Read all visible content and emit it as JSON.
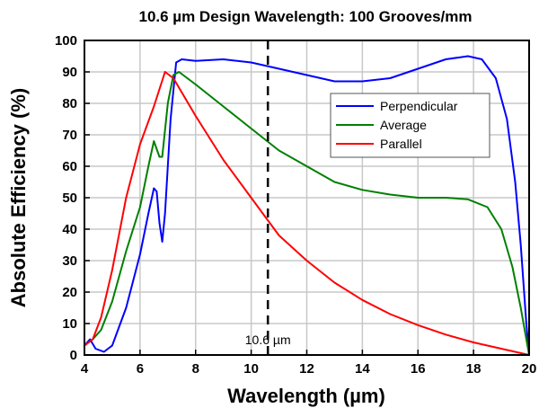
{
  "chart_data": {
    "type": "line",
    "title": "10.6 µm Design Wavelength: 100 Grooves/mm",
    "xlabel": "Wavelength (µm)",
    "ylabel": "Absolute Efficiency (%)",
    "xlim": [
      4,
      20
    ],
    "ylim": [
      0,
      100
    ],
    "xticks": [
      4,
      6,
      8,
      10,
      12,
      14,
      16,
      18,
      20
    ],
    "yticks": [
      0,
      10,
      20,
      30,
      40,
      50,
      60,
      70,
      80,
      90,
      100
    ],
    "grid": true,
    "legend_position": "upper-right",
    "annotation": {
      "label": "10.6 µm",
      "x": 10.6,
      "style": "dashed vertical line"
    },
    "series": [
      {
        "name": "Perpendicular",
        "color": "#0000ff",
        "points": [
          [
            4,
            3
          ],
          [
            4.2,
            5
          ],
          [
            4.4,
            2
          ],
          [
            4.7,
            1
          ],
          [
            5,
            3
          ],
          [
            5.5,
            15
          ],
          [
            6,
            32
          ],
          [
            6.3,
            45
          ],
          [
            6.5,
            53
          ],
          [
            6.6,
            52
          ],
          [
            6.7,
            42
          ],
          [
            6.8,
            36
          ],
          [
            6.9,
            45
          ],
          [
            7.1,
            75
          ],
          [
            7.3,
            93
          ],
          [
            7.5,
            94
          ],
          [
            8,
            93.5
          ],
          [
            9,
            94
          ],
          [
            10,
            93
          ],
          [
            11,
            91
          ],
          [
            12,
            89
          ],
          [
            13,
            87
          ],
          [
            14,
            87
          ],
          [
            15,
            88
          ],
          [
            16,
            91
          ],
          [
            17,
            94
          ],
          [
            17.8,
            95
          ],
          [
            18.3,
            94
          ],
          [
            18.8,
            88
          ],
          [
            19.2,
            75
          ],
          [
            19.5,
            55
          ],
          [
            19.7,
            35
          ],
          [
            19.9,
            10
          ],
          [
            20,
            0
          ]
        ]
      },
      {
        "name": "Average",
        "color": "#008000",
        "points": [
          [
            4,
            3
          ],
          [
            4.3,
            5
          ],
          [
            4.6,
            8
          ],
          [
            5,
            17
          ],
          [
            5.5,
            33
          ],
          [
            6,
            47
          ],
          [
            6.3,
            60
          ],
          [
            6.5,
            68
          ],
          [
            6.7,
            63
          ],
          [
            6.8,
            63
          ],
          [
            7,
            80
          ],
          [
            7.2,
            89
          ],
          [
            7.4,
            90
          ],
          [
            8,
            86
          ],
          [
            9,
            79
          ],
          [
            10,
            72
          ],
          [
            11,
            65
          ],
          [
            12,
            60
          ],
          [
            13,
            55
          ],
          [
            14,
            52.5
          ],
          [
            15,
            51
          ],
          [
            16,
            50
          ],
          [
            17,
            50
          ],
          [
            17.8,
            49.5
          ],
          [
            18.5,
            47
          ],
          [
            19,
            40
          ],
          [
            19.4,
            28
          ],
          [
            19.7,
            15
          ],
          [
            20,
            0
          ]
        ]
      },
      {
        "name": "Parallel",
        "color": "#ff0000",
        "points": [
          [
            4,
            3
          ],
          [
            4.3,
            5
          ],
          [
            4.6,
            12
          ],
          [
            5,
            27
          ],
          [
            5.5,
            50
          ],
          [
            6,
            67
          ],
          [
            6.5,
            79
          ],
          [
            6.9,
            90
          ],
          [
            7.2,
            88
          ],
          [
            8,
            76
          ],
          [
            9,
            62
          ],
          [
            10,
            50
          ],
          [
            11,
            38
          ],
          [
            12,
            30
          ],
          [
            13,
            23
          ],
          [
            14,
            17.5
          ],
          [
            15,
            13
          ],
          [
            16,
            9.5
          ],
          [
            17,
            6.5
          ],
          [
            18,
            4
          ],
          [
            19,
            2
          ],
          [
            20,
            0
          ]
        ]
      }
    ]
  }
}
